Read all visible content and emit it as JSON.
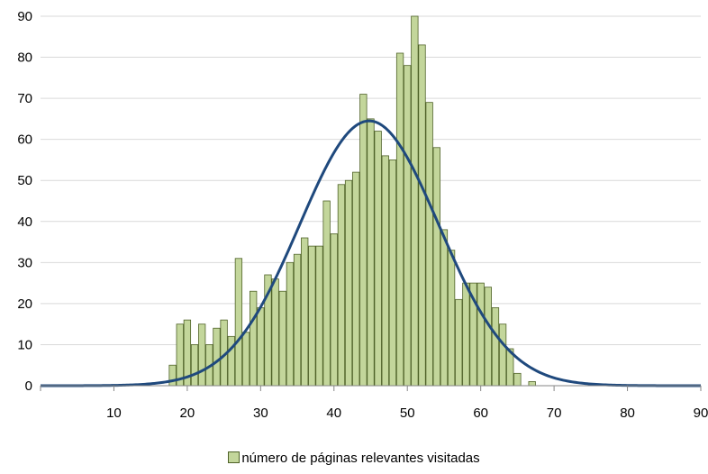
{
  "chart_data": {
    "type": "bar",
    "title": "",
    "xlabel": "",
    "ylabel": "",
    "xlim": [
      0,
      90
    ],
    "ylim": [
      0,
      90
    ],
    "x_ticks": [
      10,
      20,
      30,
      40,
      50,
      60,
      70,
      80,
      90
    ],
    "y_ticks": [
      0,
      10,
      20,
      30,
      40,
      50,
      60,
      70,
      80,
      90
    ],
    "grid": true,
    "legend_position": "bottom",
    "legend_label": "número de páginas relevantes visitadas",
    "colors": {
      "bar_fill": "#c3d69b",
      "bar_stroke": "#4f6228",
      "curve": "#1f497d",
      "grid": "#d9d9d9",
      "axis": "#868686"
    },
    "series": [
      {
        "name": "número de páginas relevantes visitadas",
        "type": "bar",
        "x": [
          18,
          19,
          20,
          21,
          22,
          23,
          24,
          25,
          26,
          27,
          28,
          29,
          30,
          31,
          32,
          33,
          34,
          35,
          36,
          37,
          38,
          39,
          40,
          41,
          42,
          43,
          44,
          45,
          46,
          47,
          48,
          49,
          50,
          51,
          52,
          53,
          54,
          55,
          56,
          57,
          58,
          59,
          60,
          61,
          62,
          63,
          64,
          65,
          66,
          67
        ],
        "values": [
          5,
          15,
          16,
          10,
          15,
          10,
          14,
          16,
          12,
          31,
          13,
          23,
          19,
          27,
          26,
          23,
          30,
          32,
          36,
          34,
          34,
          45,
          37,
          49,
          50,
          52,
          71,
          65,
          62,
          56,
          55,
          81,
          78,
          90,
          83,
          69,
          58,
          38,
          33,
          21,
          25,
          25,
          25,
          24,
          19,
          15,
          9,
          3,
          0,
          1
        ]
      },
      {
        "type": "line",
        "mean": 44.8,
        "std_dev": 9.5,
        "peak": 64.5
      }
    ]
  }
}
